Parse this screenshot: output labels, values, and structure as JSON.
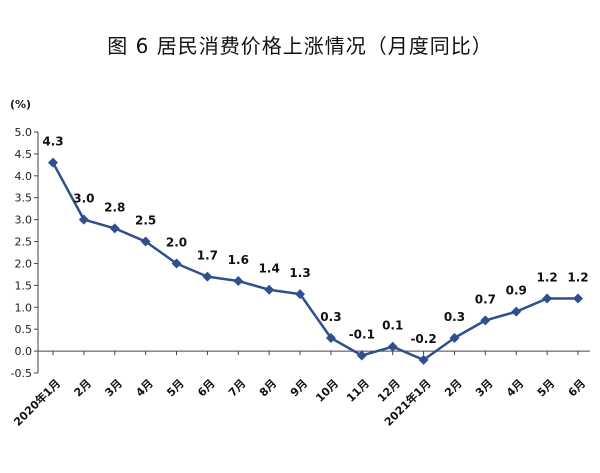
{
  "title": "图 6   居民消费价格上涨情况（月度同比）",
  "chart_data": {
    "type": "line",
    "title": "图 6   居民消费价格上涨情况（月度同比）",
    "ylabel": "(%)",
    "xlabel": "",
    "ylim": [
      -0.5,
      5.0
    ],
    "yticks": [
      "5.0",
      "4.5",
      "4.0",
      "3.5",
      "3.0",
      "2.5",
      "2.0",
      "1.5",
      "1.0",
      "0.5",
      "0.0",
      "-0.5"
    ],
    "categories": [
      "2020年1月",
      "2月",
      "3月",
      "4月",
      "5月",
      "6月",
      "7月",
      "8月",
      "9月",
      "10月",
      "11月",
      "12月",
      "2021年1月",
      "2月",
      "3月",
      "4月",
      "5月",
      "6月"
    ],
    "values": [
      4.3,
      3.0,
      2.8,
      2.5,
      2.0,
      1.7,
      1.6,
      1.4,
      1.3,
      0.3,
      -0.1,
      0.1,
      -0.2,
      0.3,
      0.7,
      0.9,
      1.2,
      1.2
    ],
    "value_labels": [
      "4.3",
      "3.0",
      "2.8",
      "2.5",
      "2.0",
      "1.7",
      "1.6",
      "1.4",
      "1.3",
      "0.3",
      "-0.1",
      "0.1",
      "-0.2",
      "0.3",
      "0.7",
      "0.9",
      "1.2",
      "1.2"
    ],
    "line_color": "#2f4f8f",
    "marker": "diamond",
    "grid": false,
    "legend": "none"
  }
}
